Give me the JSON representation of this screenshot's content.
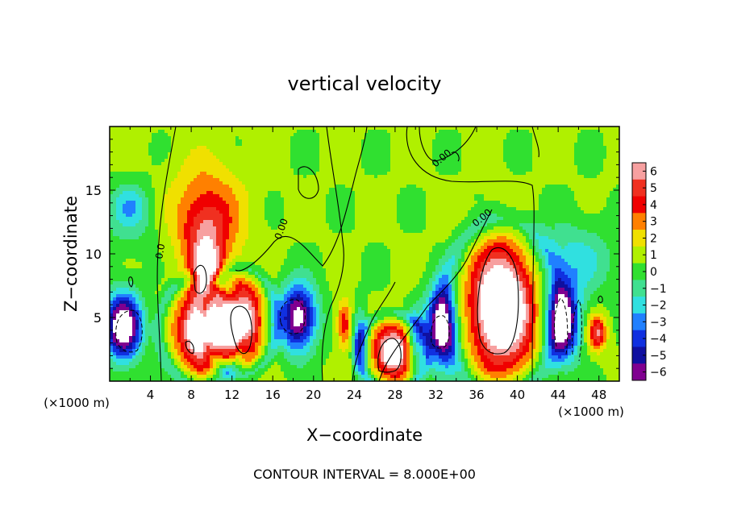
{
  "chart_data": {
    "type": "heatmap",
    "title": "vertical velocity",
    "xlabel": "X−coordinate",
    "ylabel": "Z−coordinate",
    "x_unit_left": "(×1000 m)",
    "x_unit_right": "(×1000 m)",
    "footer": "CONTOUR INTERVAL = 8.000E+00",
    "contour_labels": [
      "0.0",
      "0.00",
      "0.00",
      "0.00"
    ],
    "xlim": [
      0,
      50
    ],
    "ylim": [
      0,
      20
    ],
    "x_ticks": [
      4,
      8,
      12,
      16,
      20,
      24,
      28,
      32,
      36,
      40,
      44,
      48
    ],
    "y_ticks": [
      5,
      10,
      15
    ],
    "colorbar": {
      "levels": [
        6,
        5,
        4,
        3,
        2,
        1,
        0,
        -1,
        -2,
        -3,
        -4,
        -5,
        -6
      ],
      "colors": [
        "#f7a0a0",
        "#f03020",
        "#f00000",
        "#ff8000",
        "#f0e000",
        "#b0f000",
        "#30e030",
        "#40e090",
        "#30e0e0",
        "#2080ff",
        "#1030e0",
        "#1010a0",
        "#800090"
      ]
    },
    "features": [
      {
        "kind": "updraft",
        "x": 9,
        "z": 4,
        "wx": 2.2,
        "wz": 2.8,
        "amp": 9
      },
      {
        "kind": "updraft",
        "x": 12.8,
        "z": 4.7,
        "wx": 1.9,
        "wz": 2.8,
        "amp": 9
      },
      {
        "kind": "updraft",
        "x": 9.5,
        "z": 8.5,
        "wx": 1.3,
        "wz": 1.8,
        "amp": 7
      },
      {
        "kind": "plume",
        "x": 9.5,
        "z": 13,
        "wx": 3.5,
        "wz": 4,
        "amp": 3.5
      },
      {
        "kind": "plume",
        "x": 9.5,
        "z": 11,
        "wx": 2.0,
        "wz": 2.5,
        "amp": 2.5
      },
      {
        "kind": "updraft",
        "x": 27.8,
        "z": 2.3,
        "wx": 1.8,
        "wz": 2.0,
        "amp": 8
      },
      {
        "kind": "updraft",
        "x": 23,
        "z": 4.5,
        "wx": 0.7,
        "wz": 1.8,
        "amp": 4
      },
      {
        "kind": "updraft",
        "x": 38.5,
        "z": 5.8,
        "wx": 3.0,
        "wz": 4.6,
        "amp": 10
      },
      {
        "kind": "updraft",
        "x": 47.8,
        "z": 3.8,
        "wx": 0.9,
        "wz": 1.3,
        "amp": 5
      },
      {
        "kind": "downdraft",
        "x": 1.3,
        "z": 4.3,
        "wx": 1.8,
        "wz": 2.6,
        "amp": -9
      },
      {
        "kind": "downdraft",
        "x": 18.5,
        "z": 5.0,
        "wx": 1.8,
        "wz": 2.6,
        "amp": -8
      },
      {
        "kind": "downdraft",
        "x": 32.5,
        "z": 4.3,
        "wx": 1.5,
        "wz": 3.0,
        "amp": -8
      },
      {
        "kind": "downdraft",
        "x": 44.5,
        "z": 4.6,
        "wx": 1.6,
        "wz": 3.0,
        "amp": -8
      },
      {
        "kind": "downdraft",
        "x": 45.5,
        "z": 9.5,
        "wx": 4.0,
        "wz": 3.0,
        "amp": -2.5
      },
      {
        "kind": "downdraft",
        "x": 2.0,
        "z": 14,
        "wx": 1.8,
        "wz": 1.6,
        "amp": -2
      },
      {
        "kind": "downdraft",
        "x": 2.0,
        "z": 12.5,
        "wx": 3.0,
        "wz": 2.4,
        "amp": -1.5
      },
      {
        "kind": "downdraft",
        "x": 24.6,
        "z": 3.0,
        "wx": 0.7,
        "wz": 2.5,
        "amp": -4
      },
      {
        "kind": "downdraft",
        "x": 30.0,
        "z": 3.0,
        "wx": 0.8,
        "wz": 2.5,
        "amp": -3.5
      }
    ]
  }
}
